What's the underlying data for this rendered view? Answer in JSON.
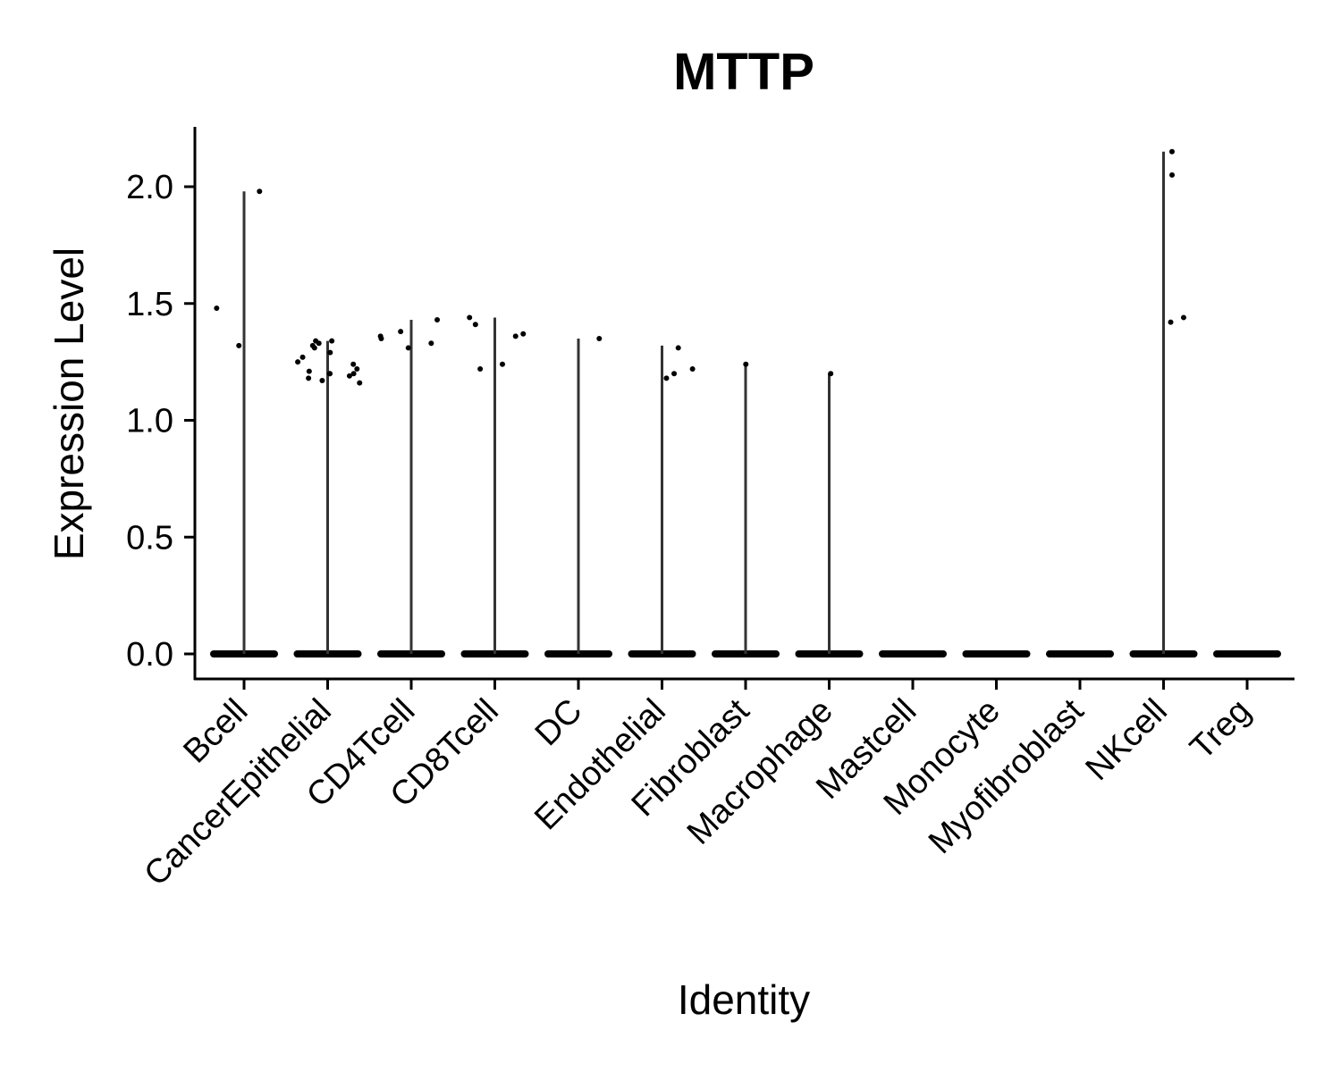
{
  "chart_data": {
    "type": "violin",
    "title": "MTTP",
    "xlabel": "Identity",
    "ylabel": "Expression Level",
    "ylim": [
      -0.11,
      2.26
    ],
    "yticks": [
      "0.0",
      "0.5",
      "1.0",
      "1.5",
      "2.0"
    ],
    "categories": [
      "Bcell",
      "CancerEpithelial",
      "CD4Tcell",
      "CD8Tcell",
      "DC",
      "Endothelial",
      "Fibroblast",
      "Macrophage",
      "Mastcell",
      "Monocyte",
      "Myofibroblast",
      "NKcell",
      "Treg"
    ],
    "max_values": [
      1.98,
      1.34,
      1.43,
      1.44,
      1.35,
      1.32,
      1.24,
      1.2,
      0,
      0,
      0,
      2.15,
      0
    ],
    "points": [
      {
        "category": "Bcell",
        "values": [
          1.98,
          1.48,
          1.32
        ]
      },
      {
        "category": "CancerEpithelial",
        "values": [
          1.34,
          1.33,
          1.31,
          1.29,
          1.27,
          1.25,
          1.2,
          1.18,
          1.17,
          1.16,
          1.21,
          1.2,
          1.22,
          1.24,
          1.32,
          1.2,
          1.19,
          1.34
        ]
      },
      {
        "category": "CD4Tcell",
        "values": [
          1.31,
          1.38,
          1.43,
          1.35,
          1.33,
          1.36
        ]
      },
      {
        "category": "CD8Tcell",
        "values": [
          1.22,
          1.37,
          1.24,
          1.44,
          1.41,
          1.36
        ]
      },
      {
        "category": "DC",
        "values": [
          1.35
        ]
      },
      {
        "category": "Endothelial",
        "values": [
          1.31,
          1.18,
          1.2,
          1.22
        ]
      },
      {
        "category": "Fibroblast",
        "values": [
          1.24
        ]
      },
      {
        "category": "Macrophage",
        "values": [
          1.2
        ]
      },
      {
        "category": "NKcell",
        "values": [
          1.42,
          1.44,
          2.05,
          2.15
        ]
      }
    ],
    "baseline_value": 0,
    "color": "#000000",
    "violin_color": "#333333"
  }
}
